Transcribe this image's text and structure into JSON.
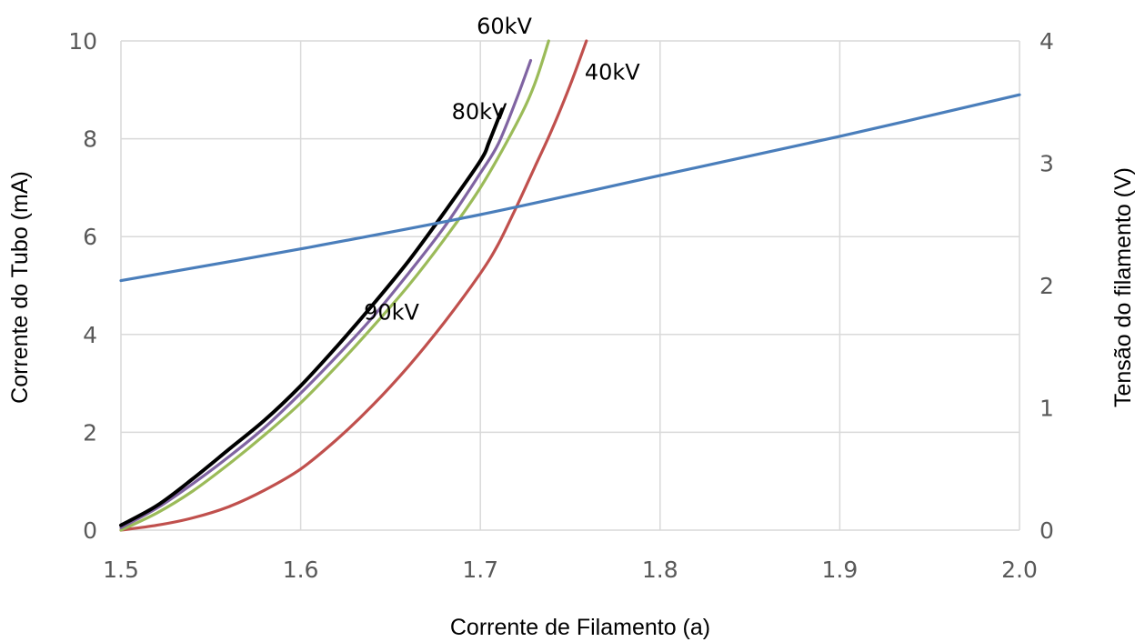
{
  "chart_data": {
    "type": "line",
    "xlabel": "Corrente de Filamento (a)",
    "ylabel": "Corrente do Tubo (mA)",
    "y2label": "Tensão do filamento (V)",
    "xlim": [
      1.5,
      2.0
    ],
    "ylim": [
      0,
      10
    ],
    "y2lim": [
      0,
      4
    ],
    "x_ticks": [
      "1.5",
      "1.6",
      "1.7",
      "1.8",
      "1.9",
      "2.0"
    ],
    "y_ticks": [
      "0",
      "2",
      "4",
      "6",
      "8",
      "10"
    ],
    "y2_ticks": [
      "0",
      "1",
      "2",
      "3",
      "4"
    ],
    "grid": true,
    "series": [
      {
        "name": "40kV",
        "axis": "left",
        "color": "#c0504d",
        "x": [
          1.5,
          1.52,
          1.54,
          1.56,
          1.58,
          1.6,
          1.62,
          1.64,
          1.66,
          1.68,
          1.7,
          1.71,
          1.72,
          1.73,
          1.74,
          1.75,
          1.759
        ],
        "y": [
          0.0,
          0.1,
          0.25,
          0.48,
          0.82,
          1.25,
          1.85,
          2.55,
          3.35,
          4.25,
          5.25,
          5.85,
          6.6,
          7.4,
          8.2,
          9.1,
          10.0
        ]
      },
      {
        "name": "60kV",
        "axis": "left",
        "color": "#9bbb59",
        "x": [
          1.5,
          1.52,
          1.54,
          1.56,
          1.58,
          1.6,
          1.62,
          1.64,
          1.66,
          1.68,
          1.7,
          1.72,
          1.73,
          1.738
        ],
        "y": [
          0.0,
          0.35,
          0.8,
          1.35,
          1.95,
          2.6,
          3.35,
          4.15,
          5.0,
          5.95,
          7.0,
          8.3,
          9.1,
          10.0
        ]
      },
      {
        "name": "80kV",
        "axis": "left",
        "color": "#8064a2",
        "x": [
          1.5,
          1.52,
          1.54,
          1.56,
          1.58,
          1.6,
          1.62,
          1.64,
          1.66,
          1.68,
          1.7,
          1.71,
          1.72,
          1.728
        ],
        "y": [
          0.05,
          0.45,
          0.95,
          1.5,
          2.1,
          2.8,
          3.55,
          4.35,
          5.25,
          6.2,
          7.3,
          7.9,
          8.8,
          9.6
        ]
      },
      {
        "name": "90kV",
        "axis": "left",
        "color": "#000000",
        "x": [
          1.5,
          1.52,
          1.54,
          1.56,
          1.58,
          1.6,
          1.62,
          1.64,
          1.66,
          1.68,
          1.7,
          1.705,
          1.712
        ],
        "y": [
          0.1,
          0.5,
          1.05,
          1.65,
          2.25,
          2.95,
          3.75,
          4.6,
          5.5,
          6.5,
          7.55,
          7.95,
          8.6
        ]
      },
      {
        "name": "",
        "axis": "right",
        "color": "#4a7ebb",
        "x": [
          1.5,
          1.6,
          1.7,
          1.8,
          1.9,
          2.0
        ],
        "y": [
          2.04,
          2.3,
          2.58,
          2.9,
          3.22,
          3.56
        ]
      }
    ]
  }
}
